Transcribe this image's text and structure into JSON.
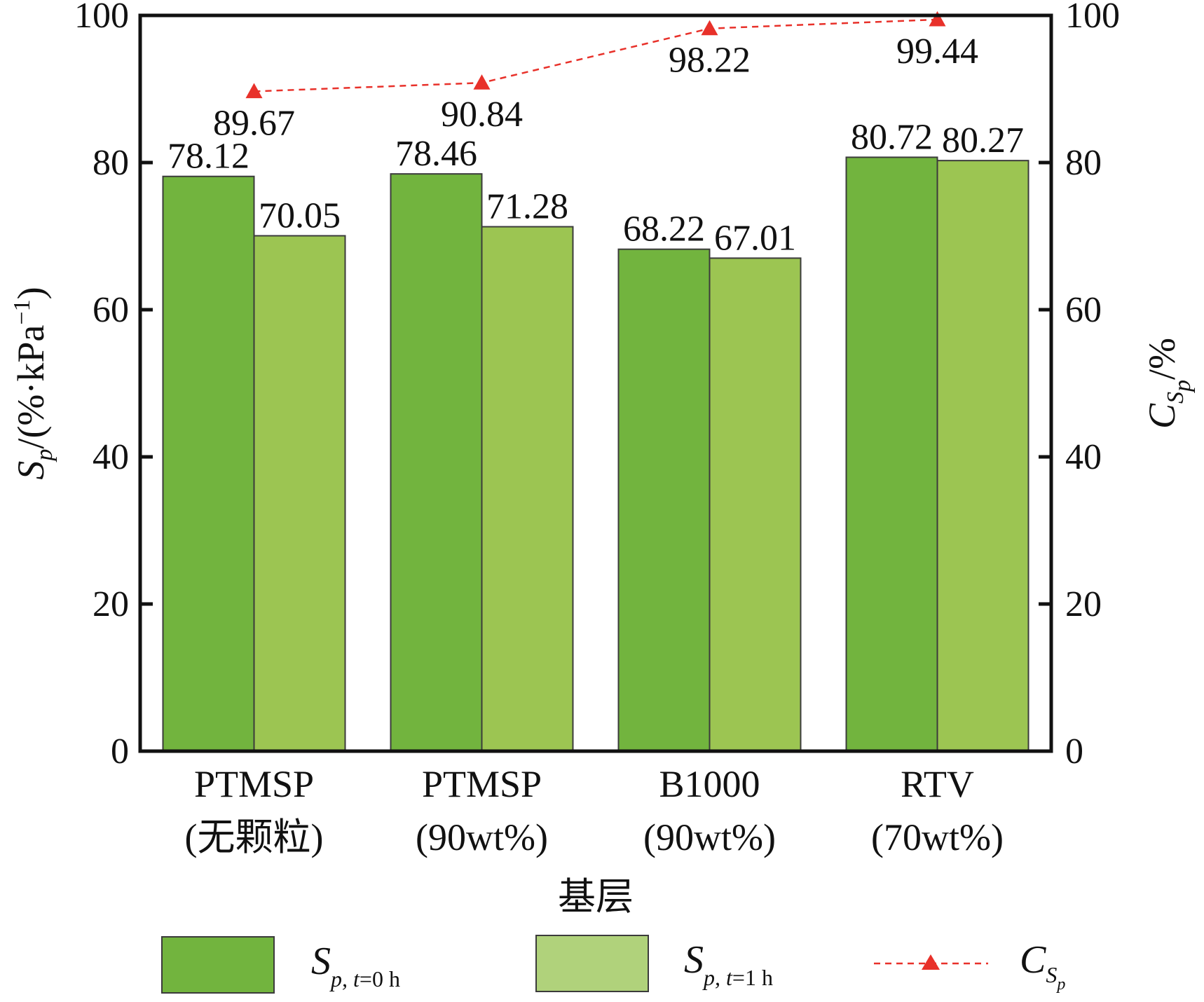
{
  "chart_data": {
    "type": "bar",
    "categories": [
      [
        "PTMSP",
        "(无颗粒)"
      ],
      [
        "PTMSP",
        "(90wt%)"
      ],
      [
        "B1000",
        "(90wt%)"
      ],
      [
        "RTV",
        "(70wt%)"
      ]
    ],
    "series": [
      {
        "name_main": "S",
        "name_sub": "p, ",
        "name_sub_italic": "t",
        "name_sub_rest": "=0 h",
        "values": [
          78.12,
          78.46,
          68.22,
          80.72
        ],
        "labels": [
          "78.12",
          "78.46",
          "68.22",
          "80.72"
        ],
        "color": "#72b43e",
        "axis": "left"
      },
      {
        "name_main": "S",
        "name_sub": "p, ",
        "name_sub_italic": "t",
        "name_sub_rest": "=1 h",
        "values": [
          70.05,
          71.28,
          67.01,
          80.27
        ],
        "labels": [
          "70.05",
          "71.28",
          "67.01",
          "80.27"
        ],
        "color": "#9cc552",
        "legend_color": "#b0d27b",
        "axis": "left"
      },
      {
        "name_main": "C",
        "name_sub": "S",
        "name_subsub": "p",
        "type": "line",
        "values": [
          89.67,
          90.84,
          98.22,
          99.44
        ],
        "labels": [
          "89.67",
          "90.84",
          "98.22",
          "99.44"
        ],
        "color": "#e8312a",
        "line_style": "dashed",
        "marker": "triangle",
        "axis": "right"
      }
    ],
    "xlabel": "基层",
    "ylabel_left": {
      "main": "S",
      "sub": "p",
      "rest": "/(%·kPa",
      "sup": "−1",
      "close": ")"
    },
    "ylabel_right": {
      "main": "C",
      "sub": "S",
      "subsub": "p",
      "rest": "/%"
    },
    "ylim_left": [
      0,
      100
    ],
    "ylim_right": [
      0,
      100
    ],
    "yticks": [
      "0",
      "20",
      "40",
      "60",
      "80",
      "100"
    ],
    "grid": false,
    "legend_position": "bottom"
  }
}
